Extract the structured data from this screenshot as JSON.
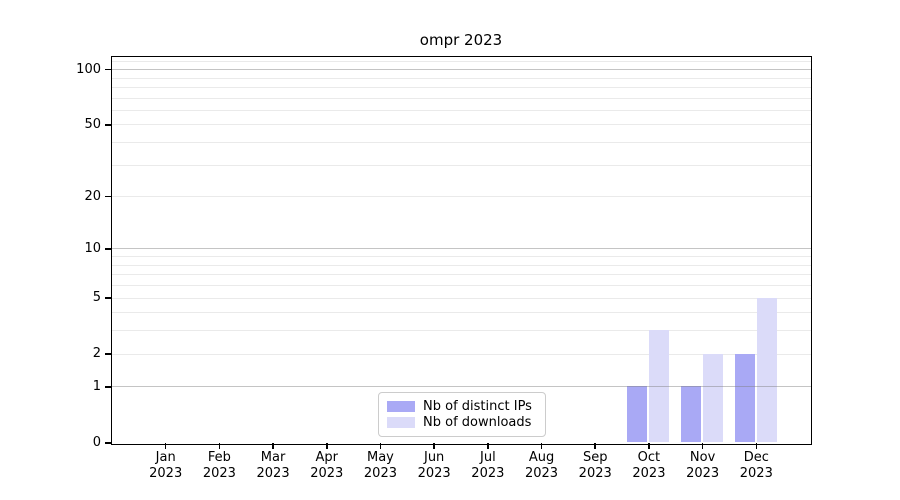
{
  "title": "ompr 2023",
  "chart_data": {
    "type": "bar",
    "title": "ompr 2023",
    "categories": [
      "Jan 2023",
      "Feb 2023",
      "Mar 2023",
      "Apr 2023",
      "May 2023",
      "Jun 2023",
      "Jul 2023",
      "Aug 2023",
      "Sep 2023",
      "Oct 2023",
      "Nov 2023",
      "Dec 2023"
    ],
    "series": [
      {
        "name": "Nb of distinct IPs",
        "key": "distinct-ips",
        "color": "#a9a9f5",
        "values": [
          0,
          0,
          0,
          0,
          0,
          0,
          0,
          0,
          0,
          1,
          1,
          2
        ]
      },
      {
        "name": "Nb of downloads",
        "key": "downloads",
        "color": "#dbdbf9",
        "values": [
          0,
          0,
          0,
          0,
          0,
          0,
          0,
          0,
          0,
          3,
          2,
          5
        ]
      }
    ],
    "xlabel": "",
    "ylabel": "",
    "yscale": "log1p",
    "ylim": [
      0,
      117
    ],
    "y_ticks": [
      0,
      1,
      2,
      5,
      10,
      20,
      50,
      100
    ],
    "minor_gridlines": [
      2,
      3,
      4,
      5,
      6,
      7,
      8,
      9,
      20,
      30,
      40,
      50,
      60,
      70,
      80,
      90,
      110
    ],
    "major_gridlines": [
      1,
      10,
      100
    ],
    "grid": true,
    "legend_position": "lower center",
    "colors": {
      "minor_gridline": "#eaeaea",
      "major_gridline": "#b3b3b3",
      "spine": "#000000",
      "text": "#000000"
    }
  },
  "legend": {
    "items": [
      {
        "label": "Nb of distinct IPs",
        "color": "#a9a9f5"
      },
      {
        "label": "Nb of downloads",
        "color": "#dbdbf9"
      }
    ]
  }
}
